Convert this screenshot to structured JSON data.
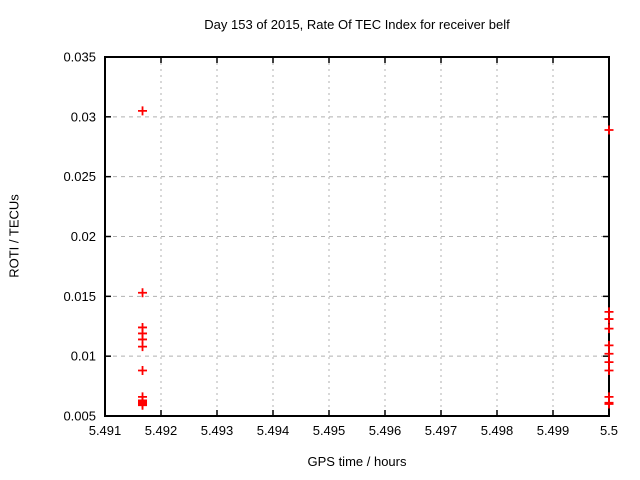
{
  "chart_data": {
    "type": "scatter",
    "title": "Day 153 of 2015, Rate Of TEC Index for receiver belf",
    "xlabel": "GPS time / hours",
    "ylabel": "ROTI / TECUs",
    "xlim": [
      5.491,
      5.5
    ],
    "ylim": [
      0.005,
      0.035
    ],
    "xticks": [
      5.491,
      5.492,
      5.493,
      5.494,
      5.495,
      5.496,
      5.497,
      5.498,
      5.499,
      5.5
    ],
    "xtick_labels": [
      "5.491",
      "5.492",
      "5.493",
      "5.494",
      "5.495",
      "5.496",
      "5.497",
      "5.498",
      "5.499",
      "5.5"
    ],
    "yticks": [
      0.005,
      0.01,
      0.015,
      0.02,
      0.025,
      0.03,
      0.035
    ],
    "ytick_labels": [
      "0.005",
      "0.01",
      "0.015",
      "0.02",
      "0.025",
      "0.03",
      "0.035"
    ],
    "grid": true,
    "legend_position": "none",
    "marker": "plus",
    "marker_color": "#ff0000",
    "grid_color": "#b0b0b0",
    "border_color": "#000000",
    "series": [
      {
        "name": "ROTI",
        "points": [
          [
            5.49167,
            0.0305
          ],
          [
            5.49167,
            0.0153
          ],
          [
            5.49167,
            0.0124
          ],
          [
            5.49167,
            0.0119
          ],
          [
            5.49167,
            0.0114
          ],
          [
            5.49167,
            0.0108
          ],
          [
            5.49167,
            0.0088
          ],
          [
            5.49167,
            0.0066
          ],
          [
            5.49167,
            0.0063
          ],
          [
            5.49167,
            0.0062
          ],
          [
            5.49167,
            0.0061
          ],
          [
            5.49167,
            0.006
          ],
          [
            5.49167,
            0.0059
          ],
          [
            5.5,
            0.0289
          ],
          [
            5.5,
            0.0137
          ],
          [
            5.5,
            0.0131
          ],
          [
            5.5,
            0.0123
          ],
          [
            5.5,
            0.0109
          ],
          [
            5.5,
            0.0102
          ],
          [
            5.5,
            0.0095
          ],
          [
            5.5,
            0.0088
          ],
          [
            5.5,
            0.0066
          ],
          [
            5.5,
            0.0061
          ],
          [
            5.5,
            0.006
          ]
        ]
      }
    ]
  }
}
